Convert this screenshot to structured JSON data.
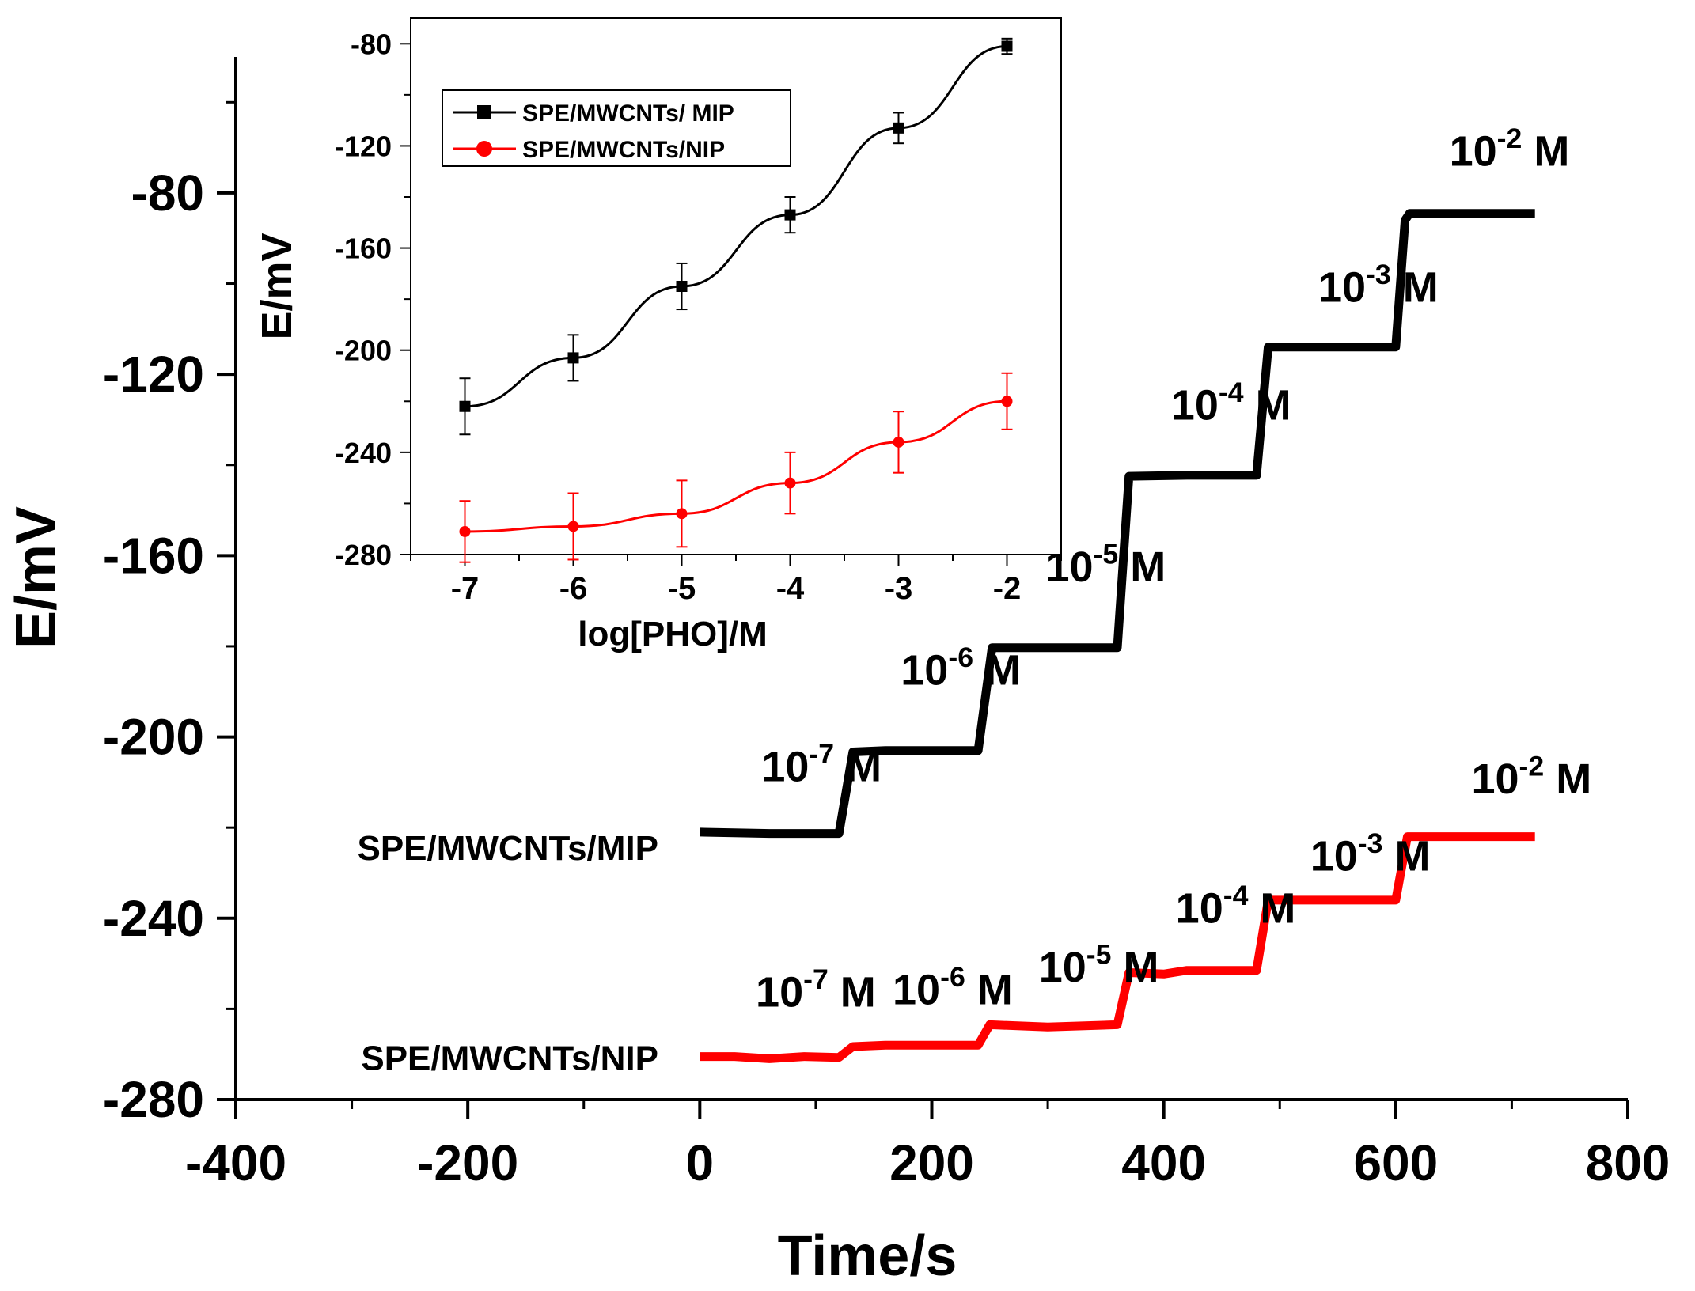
{
  "chart_data": [
    {
      "type": "line",
      "xlabel": "Time/s",
      "ylabel": "E/mV",
      "xlim": [
        -400,
        800
      ],
      "ylim": [
        -280,
        -50
      ],
      "xticks": [
        -400,
        -200,
        0,
        200,
        400,
        600,
        800
      ],
      "xtick_labels": [
        "-400",
        "-200",
        "0",
        "200",
        "400",
        "600",
        "800"
      ],
      "yticks": [
        -280,
        -240,
        -200,
        -160,
        -120,
        -80
      ],
      "ytick_labels": [
        "-280",
        "-240",
        "-200",
        "-160",
        "-120",
        "-80"
      ],
      "legend": "none",
      "grid": false,
      "series": [
        {
          "name": "SPE/MWCNTs/MIP",
          "color": "#000000",
          "points": [
            [
              0,
              -221
            ],
            [
              60,
              -221.3
            ],
            [
              120,
              -221.3
            ],
            [
              132,
              -203.3
            ],
            [
              160,
              -203
            ],
            [
              240,
              -203
            ],
            [
              252,
              -180.3
            ],
            [
              300,
              -180.3
            ],
            [
              360,
              -180.3
            ],
            [
              370,
              -142.5
            ],
            [
              420,
              -142.3
            ],
            [
              480,
              -142.3
            ],
            [
              490,
              -114
            ],
            [
              540,
              -114
            ],
            [
              600,
              -114
            ],
            [
              608,
              -86
            ],
            [
              612,
              -84.5
            ],
            [
              660,
              -84.5
            ],
            [
              720,
              -84.5
            ]
          ],
          "step_labels": [
            {
              "base": "10",
              "exp": "-7",
              "unit": " M",
              "t": 105,
              "e": -209.8
            },
            {
              "base": "10",
              "exp": "-6",
              "unit": " M",
              "t": 225,
              "e": -188.5
            },
            {
              "base": "10",
              "exp": "-5",
              "unit": " M",
              "t": 350,
              "e": -165.7
            },
            {
              "base": "10",
              "exp": "-4",
              "unit": " M",
              "t": 458,
              "e": -130
            },
            {
              "base": "10",
              "exp": "-3",
              "unit": " M",
              "t": 585,
              "e": -104
            },
            {
              "base": "10",
              "exp": "-2",
              "unit": " M",
              "t": 698,
              "e": -74
            }
          ]
        },
        {
          "name": "SPE/MWCNTs/NIP",
          "color": "#ff0000",
          "points": [
            [
              0,
              -270.5
            ],
            [
              30,
              -270.5
            ],
            [
              60,
              -271
            ],
            [
              90,
              -270.5
            ],
            [
              120,
              -270.7
            ],
            [
              132,
              -268.3
            ],
            [
              160,
              -268
            ],
            [
              240,
              -268
            ],
            [
              250,
              -263.5
            ],
            [
              300,
              -264
            ],
            [
              360,
              -263.5
            ],
            [
              370,
              -252
            ],
            [
              400,
              -252.3
            ],
            [
              420,
              -251.5
            ],
            [
              480,
              -251.5
            ],
            [
              490,
              -236
            ],
            [
              540,
              -236
            ],
            [
              600,
              -236
            ],
            [
              610,
              -222
            ],
            [
              660,
              -222
            ],
            [
              720,
              -222
            ]
          ],
          "step_labels": [
            {
              "base": "10",
              "exp": "-7",
              "unit": " M",
              "t": 100,
              "e": -259.5
            },
            {
              "base": "10",
              "exp": "-6",
              "unit": " M",
              "t": 218,
              "e": -259
            },
            {
              "base": "10",
              "exp": "-5",
              "unit": " M",
              "t": 344,
              "e": -254
            },
            {
              "base": "10",
              "exp": "-4",
              "unit": " M",
              "t": 462,
              "e": -241
            },
            {
              "base": "10",
              "exp": "-3",
              "unit": " M",
              "t": 578,
              "e": -229.5
            },
            {
              "base": "10",
              "exp": "-2",
              "unit": " M",
              "t": 717,
              "e": -212.5
            }
          ]
        }
      ],
      "curve_labels": [
        "SPE/MWCNTs/MIP",
        "SPE/MWCNTs/NIP"
      ]
    },
    {
      "type": "line",
      "inset": true,
      "xlabel": "log[PHO]/M",
      "ylabel": "E/mV",
      "xlim": [
        -7.5,
        -1.5
      ],
      "ylim": [
        -280,
        -70
      ],
      "xticks": [
        -7,
        -6,
        -5,
        -4,
        -3,
        -2
      ],
      "xtick_labels": [
        "-7",
        "-6",
        "-5",
        "-4",
        "-3",
        "-2"
      ],
      "yticks": [
        -280,
        -240,
        -200,
        -160,
        -120,
        -80
      ],
      "ytick_labels": [
        "-280",
        "-240",
        "-200",
        "-160",
        "-120",
        "-80"
      ],
      "legend": "top-left",
      "grid": false,
      "series": [
        {
          "name": "SPE/MWCNTs/ MIP",
          "color": "#000000",
          "marker": "square",
          "x": [
            -7,
            -6,
            -5,
            -4,
            -3,
            -2
          ],
          "y": [
            -222,
            -203,
            -175,
            -147,
            -113,
            -81
          ],
          "err": [
            11,
            9,
            9,
            7,
            6,
            3
          ]
        },
        {
          "name": "SPE/MWCNTs/NIP",
          "color": "#ff0000",
          "marker": "circle",
          "x": [
            -7,
            -6,
            -5,
            -4,
            -3,
            -2
          ],
          "y": [
            -271,
            -269,
            -264,
            -252,
            -236,
            -220
          ],
          "err": [
            12,
            13,
            13,
            12,
            12,
            11
          ]
        }
      ]
    }
  ]
}
